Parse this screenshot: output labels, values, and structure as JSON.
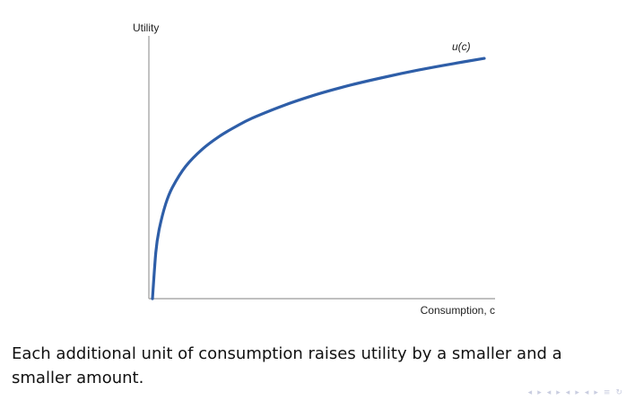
{
  "chart_data": {
    "type": "line",
    "title": "",
    "ylabel": "Utility",
    "xlabel": "Consumption, c",
    "xlim": [
      0,
      100
    ],
    "ylim": [
      0,
      100
    ],
    "grid": false,
    "series": [
      {
        "name": "u(c)",
        "color": "#2e5ea8",
        "x": [
          0,
          1,
          2,
          4,
          6,
          10,
          15,
          20,
          25,
          30,
          40,
          50,
          60,
          70,
          80,
          90,
          100
        ],
        "values": [
          0,
          17.2,
          25.8,
          35.5,
          41.6,
          49.5,
          55.9,
          60.6,
          64.3,
          67.5,
          72.5,
          76.6,
          80.0,
          82.9,
          85.5,
          87.8,
          89.9
        ]
      }
    ]
  },
  "caption": "Each additional unit of consumption raises utility by a smaller and a smaller amount.",
  "colors": {
    "curve": "#2e5ea8",
    "axis": "#9a9a9a",
    "nav": "#c9cde0"
  },
  "nav_icons": [
    "frame-prev-icon",
    "frame-next-icon",
    "subsection-prev-icon",
    "subsection-next-icon",
    "section-prev-icon",
    "section-next-icon",
    "slide-prev-icon",
    "slide-next-icon",
    "fit-icon",
    "search-icon"
  ]
}
